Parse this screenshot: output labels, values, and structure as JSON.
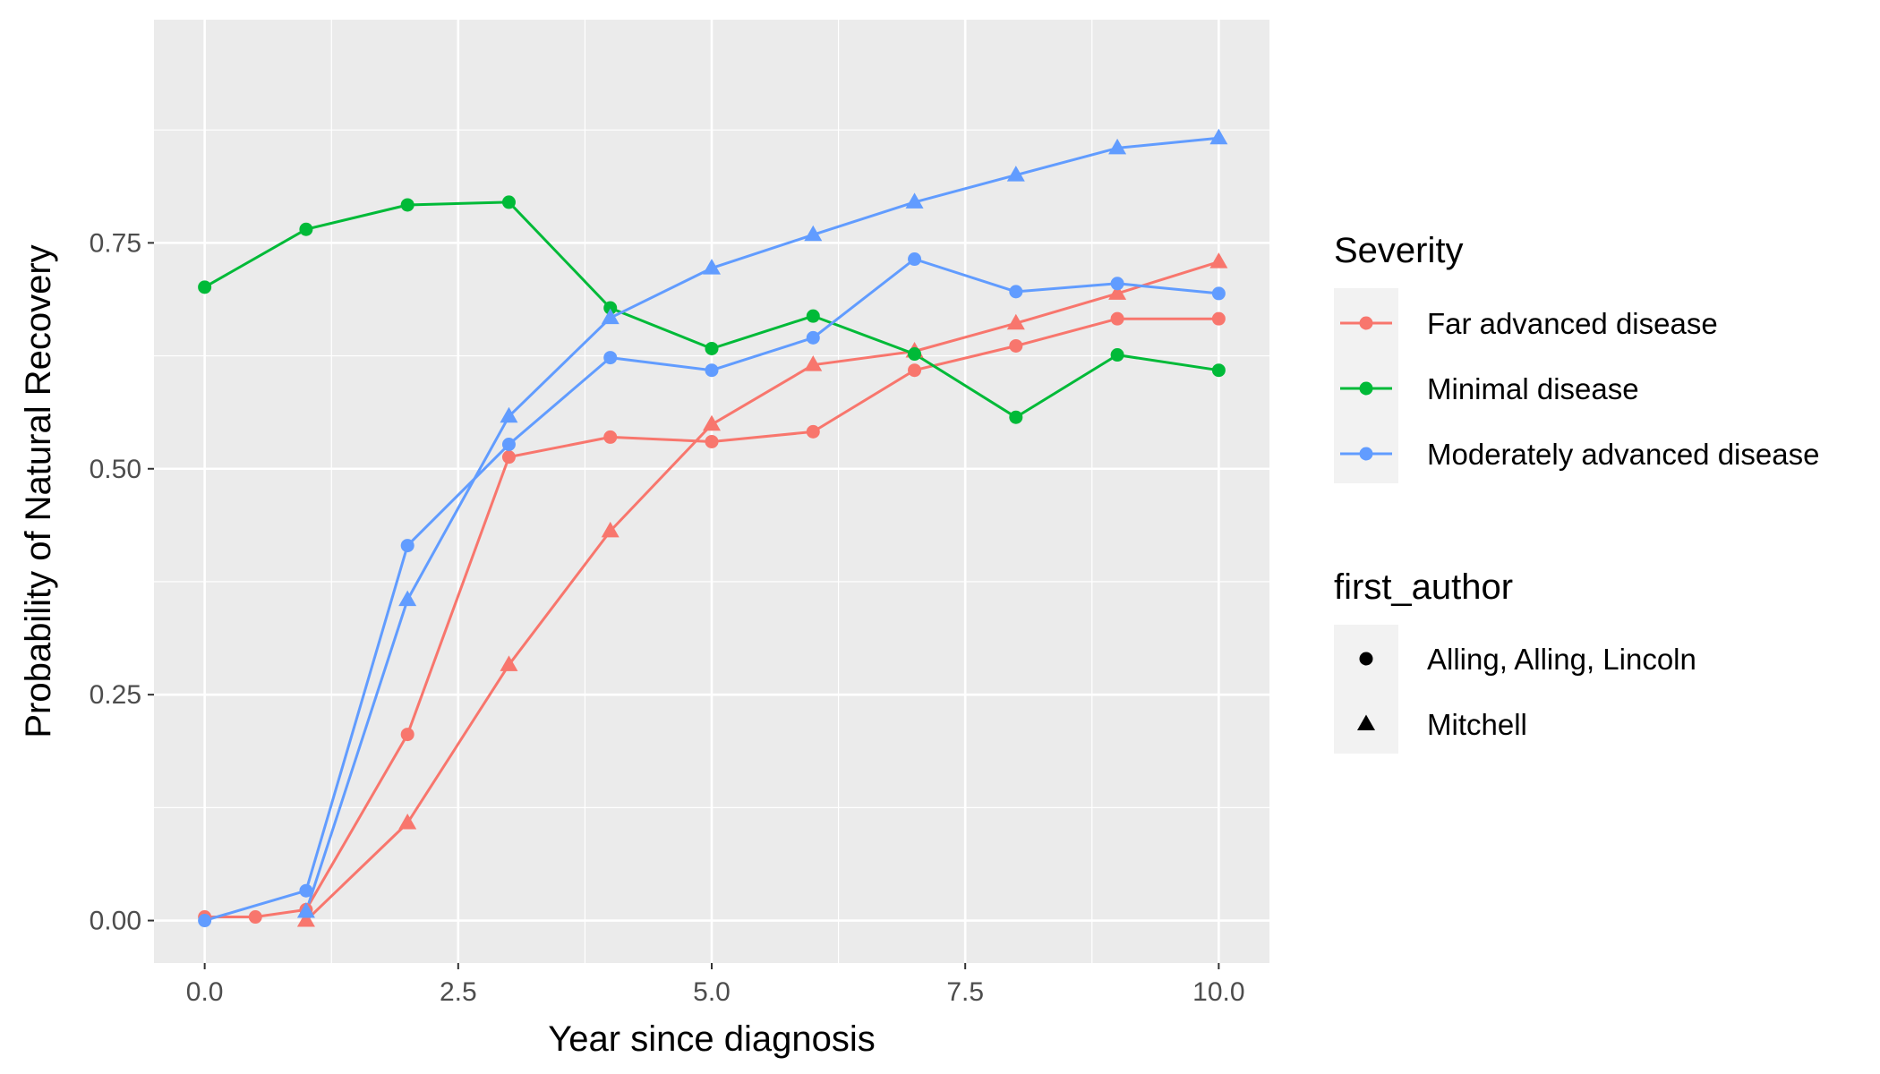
{
  "chart_data": {
    "type": "line",
    "title": "",
    "xlabel": "Year since diagnosis",
    "ylabel": "Probability of Natural Recovery",
    "xlim": [
      -0.5,
      10.5
    ],
    "ylim": [
      -0.047,
      0.997
    ],
    "x_ticks": [
      {
        "value": 0,
        "label": "0.0"
      },
      {
        "value": 2.5,
        "label": "2.5"
      },
      {
        "value": 5,
        "label": "5.0"
      },
      {
        "value": 7.5,
        "label": "7.5"
      },
      {
        "value": 10,
        "label": "10.0"
      }
    ],
    "y_ticks": [
      {
        "value": 0,
        "label": "0.00"
      },
      {
        "value": 0.25,
        "label": "0.25"
      },
      {
        "value": 0.5,
        "label": "0.50"
      },
      {
        "value": 0.75,
        "label": "0.75"
      }
    ],
    "x_minor": [
      1.25,
      3.75,
      6.25,
      8.75
    ],
    "y_minor": [
      0.125,
      0.375,
      0.625,
      0.875
    ],
    "grid": true,
    "panel_background": "#EBEBEB",
    "legend_position": "right",
    "legend": {
      "color_title": "Severity",
      "color_entries": [
        {
          "label": "Far advanced disease",
          "color": "#F8766D"
        },
        {
          "label": "Minimal disease",
          "color": "#00BA38"
        },
        {
          "label": "Moderately advanced disease",
          "color": "#619CFF"
        }
      ],
      "shape_title": "first_author",
      "shape_entries": [
        {
          "label": "Alling, Alling, Lincoln",
          "shape": "circle"
        },
        {
          "label": "Mitchell",
          "shape": "triangle"
        }
      ]
    },
    "series": [
      {
        "severity": "Far advanced disease",
        "author": "Alling, Alling, Lincoln",
        "color": "#F8766D",
        "shape": "circle",
        "x": [
          0,
          0.5,
          1,
          2,
          3,
          4,
          5,
          6,
          7,
          8,
          9,
          10
        ],
        "y": [
          0.004,
          0.004,
          0.012,
          0.206,
          0.513,
          0.535,
          0.53,
          0.541,
          0.609,
          0.636,
          0.666,
          0.666
        ]
      },
      {
        "severity": "Far advanced disease",
        "author": "Mitchell",
        "color": "#F8766D",
        "shape": "triangle",
        "x": [
          1,
          2,
          3,
          4,
          5,
          6,
          7,
          8,
          9,
          10
        ],
        "y": [
          0.0,
          0.108,
          0.283,
          0.431,
          0.549,
          0.615,
          0.63,
          0.661,
          0.694,
          0.729
        ]
      },
      {
        "severity": "Minimal disease",
        "author": "Alling, Alling, Lincoln",
        "color": "#00BA38",
        "shape": "circle",
        "x": [
          0,
          1,
          2,
          3,
          4,
          5,
          6,
          7,
          8,
          9,
          10
        ],
        "y": [
          0.701,
          0.765,
          0.792,
          0.795,
          0.678,
          0.633,
          0.669,
          0.627,
          0.557,
          0.626,
          0.609
        ]
      },
      {
        "severity": "Moderately advanced disease",
        "author": "Alling, Alling, Lincoln",
        "color": "#619CFF",
        "shape": "circle",
        "x": [
          0,
          1,
          2,
          3,
          4,
          5,
          6,
          7,
          8,
          9,
          10
        ],
        "y": [
          0.0,
          0.033,
          0.415,
          0.527,
          0.623,
          0.609,
          0.645,
          0.732,
          0.696,
          0.705,
          0.694
        ]
      },
      {
        "severity": "Moderately advanced disease",
        "author": "Mitchell",
        "color": "#619CFF",
        "shape": "triangle",
        "x": [
          1,
          2,
          3,
          4,
          5,
          6,
          7,
          8,
          9,
          10
        ],
        "y": [
          0.01,
          0.355,
          0.558,
          0.667,
          0.722,
          0.759,
          0.795,
          0.825,
          0.855,
          0.866
        ]
      }
    ]
  }
}
